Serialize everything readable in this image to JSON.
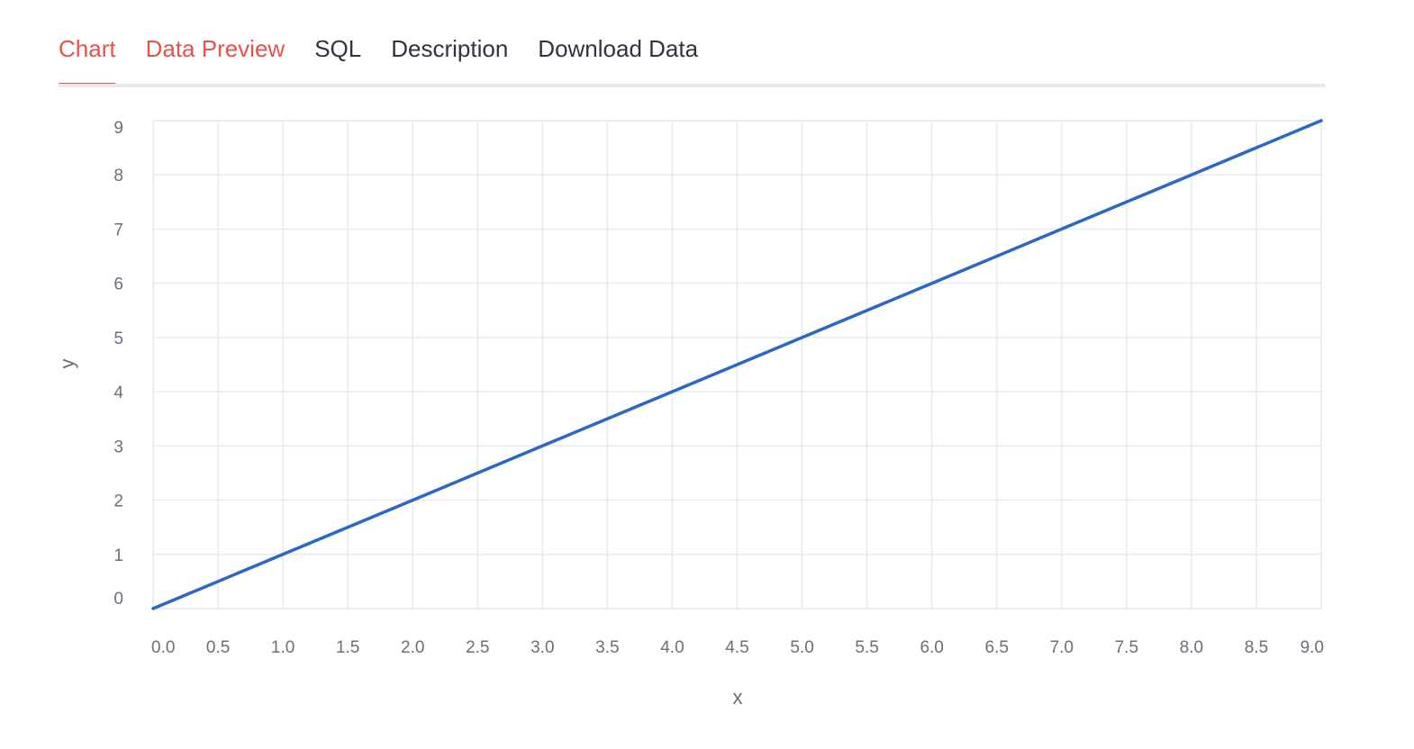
{
  "tabs": [
    {
      "label": "Chart",
      "active": true
    },
    {
      "label": "Data Preview",
      "active": false
    },
    {
      "label": "SQL",
      "active": false
    },
    {
      "label": "Description",
      "active": false
    },
    {
      "label": "Download Data",
      "active": false
    }
  ],
  "colors": {
    "accent": "#e5534b",
    "line": "#2c66c6",
    "grid": "#e6e9ef"
  },
  "chart_data": {
    "type": "line",
    "xlabel": "x",
    "ylabel": "y",
    "xlim": [
      0,
      9
    ],
    "ylim": [
      0,
      9
    ],
    "x_ticks": [
      "0.0",
      "0.5",
      "1.0",
      "1.5",
      "2.0",
      "2.5",
      "3.0",
      "3.5",
      "4.0",
      "4.5",
      "5.0",
      "5.5",
      "6.0",
      "6.5",
      "7.0",
      "7.5",
      "8.0",
      "8.5",
      "9.0"
    ],
    "y_ticks": [
      "0",
      "1",
      "2",
      "3",
      "4",
      "5",
      "6",
      "7",
      "8",
      "9"
    ],
    "grid": true,
    "series": [
      {
        "x": [
          0,
          1,
          2,
          3,
          4,
          5,
          6,
          7,
          8,
          9
        ],
        "y": [
          0,
          1,
          2,
          3,
          4,
          5,
          6,
          7,
          8,
          9
        ]
      }
    ]
  }
}
